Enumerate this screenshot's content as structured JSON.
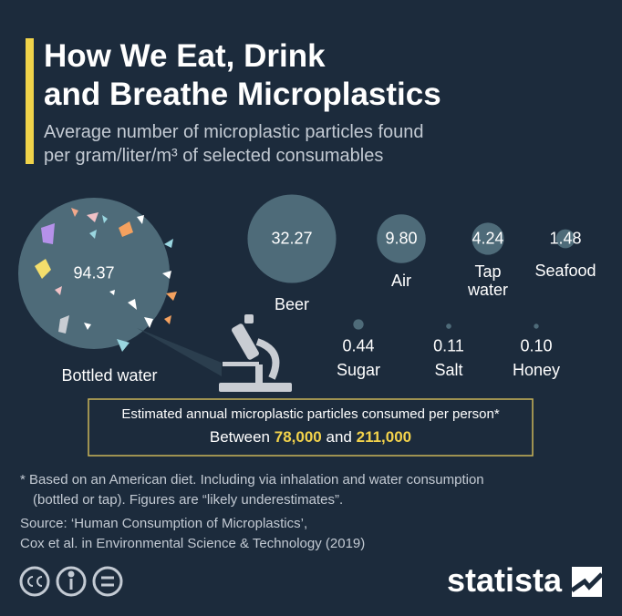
{
  "title": [
    "How We Eat, Drink",
    "and Breathe Microplastics"
  ],
  "subtitle": [
    "Average number of microplastic particles found",
    "per gram/liter/m³ of selected consumables"
  ],
  "chart_data": {
    "type": "bubble",
    "color": "#4e6b79",
    "categories": [
      "Bottled water",
      "Beer",
      "Air",
      "Tap water",
      "Seafood",
      "Sugar",
      "Salt",
      "Honey"
    ],
    "values": [
      94.37,
      32.27,
      9.8,
      4.24,
      1.48,
      0.44,
      0.11,
      0.1
    ],
    "value_labels": [
      "94.37",
      "32.27",
      "9.80",
      "4.24",
      "1.48",
      "0.44",
      "0.11",
      "0.10"
    ]
  },
  "callout": {
    "text": "Estimated annual microplastic particles consumed per person*",
    "prefix": "Between",
    "low": "78,000",
    "joiner": "and",
    "high": "211,000"
  },
  "footnote": [
    "* Based on an American diet. Including via inhalation and water consumption",
    "(bottled or tap). Figures are “likely underestimates”."
  ],
  "source": [
    "Source: ‘Human Consumption of Microplastics’,",
    "Cox et al. in Environmental Science & Technology (2019)"
  ],
  "brand": "statista"
}
